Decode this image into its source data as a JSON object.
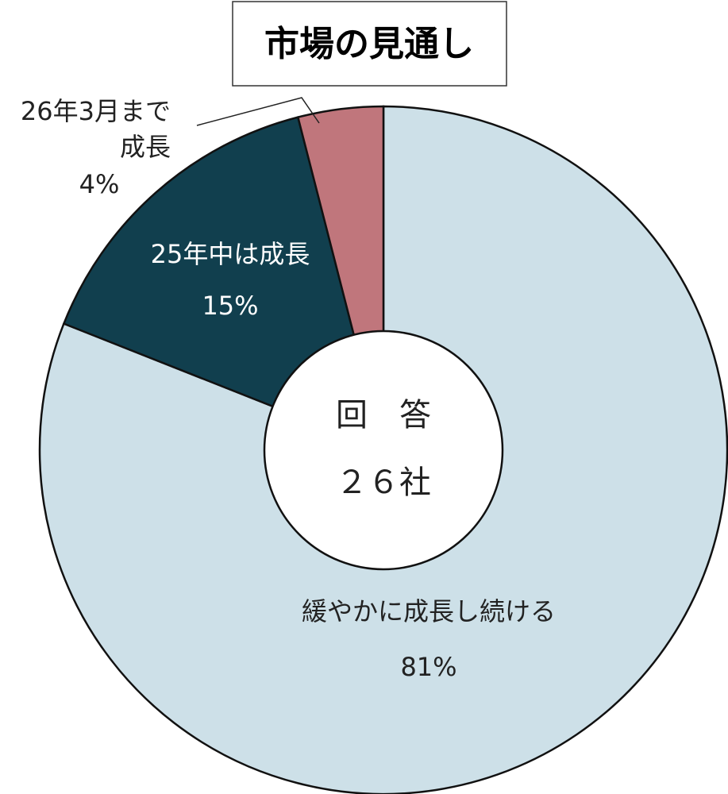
{
  "chart_data": {
    "type": "pie",
    "title": "市場の見通し",
    "center_labels": [
      "回　答",
      "２６社"
    ],
    "categories": [
      "緩やかに成長し続ける",
      "25年中は成長",
      "26年3月まで\n成長"
    ],
    "values": [
      81,
      15,
      4
    ],
    "value_labels": [
      "81%",
      "15%",
      "4%"
    ],
    "colors": [
      "#cde0e8",
      "#113f4e",
      "#c0767c"
    ]
  }
}
